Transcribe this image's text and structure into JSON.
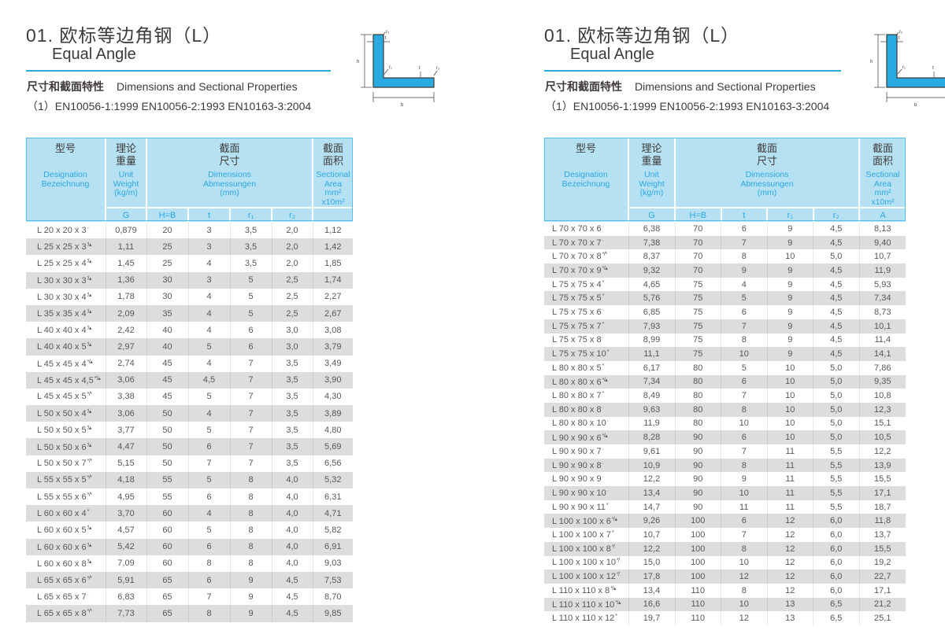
{
  "colors": {
    "accent_blue": "#29abe2",
    "header_bg": "#b5e1f3",
    "header_text_blue": "#2da7e0",
    "stripe_gray": "#dcdddd",
    "body_text": "#595757"
  },
  "header": {
    "title_cn": "01. 欧标等边角钢（L）",
    "title_en": "Equal Angle",
    "subtitle_cn": "尺寸和截面特性",
    "subtitle_en": "Dimensions and Sectional Properties",
    "standards": "（1）EN10056-1:1999  EN10056-2:1993  EN10163-3:2004"
  },
  "diagram": {
    "labels": {
      "r2_top": "r₂",
      "t_top": "t",
      "h": "h",
      "r1": "r₁",
      "t_right": "t",
      "r2_right": "r₂",
      "b": "b"
    }
  },
  "columns": {
    "designation": {
      "cn": "型号",
      "en1": "Designation",
      "en2": "Bezeichnung"
    },
    "weight": {
      "cn1": "理论",
      "cn2": "重量",
      "en1": "Unit",
      "en2": "Weight",
      "en3": "(kg/m)"
    },
    "dims": {
      "cn1": "截面",
      "cn2": "尺寸",
      "en1": "Dimensions",
      "en2": "Abmessungen",
      "en3": "(mm)"
    },
    "area": {
      "cn1": "截面",
      "cn2": "面积",
      "en1": "Sectional",
      "en2": "Area",
      "en3": "mm²",
      "en4": "x10m²"
    }
  },
  "left_table": {
    "sub_headers": [
      "G",
      "H=B",
      "t",
      "r₁",
      "r₂",
      ""
    ],
    "rows": [
      {
        "d": "L 20 x 20 x 3",
        "m": "-",
        "g": "0,879",
        "hb": "20",
        "t": "3",
        "r1": "3,5",
        "r2": "2,0",
        "a": "1,12"
      },
      {
        "d": "L 25 x 25 x 3",
        "m": "′/▴",
        "g": "1,11",
        "hb": "25",
        "t": "3",
        "r1": "3,5",
        "r2": "2,0",
        "a": "1,42"
      },
      {
        "d": "L 25 x 25 x 4",
        "m": "′/▴",
        "g": "1,45",
        "hb": "25",
        "t": "4",
        "r1": "3,5",
        "r2": "2,0",
        "a": "1,85"
      },
      {
        "d": "L 30 x 30 x 3",
        "m": "′/▴",
        "g": "1,36",
        "hb": "30",
        "t": "3",
        "r1": "5",
        "r2": "2,5",
        "a": "1,74"
      },
      {
        "d": "L 30 x 30 x 4",
        "m": "′/▴",
        "g": "1,78",
        "hb": "30",
        "t": "4",
        "r1": "5",
        "r2": "2,5",
        "a": "2,27"
      },
      {
        "d": "L 35 x 35 x 4",
        "m": "′/▴",
        "g": "2,09",
        "hb": "35",
        "t": "4",
        "r1": "5",
        "r2": "2,5",
        "a": "2,67"
      },
      {
        "d": "L 40 x 40 x 4",
        "m": "′/▴",
        "g": "2,42",
        "hb": "40",
        "t": "4",
        "r1": "6",
        "r2": "3,0",
        "a": "3,08"
      },
      {
        "d": "L 40 x 40 x 5",
        "m": "′/▴",
        "g": "2,97",
        "hb": "40",
        "t": "5",
        "r1": "6",
        "r2": "3,0",
        "a": "3,79"
      },
      {
        "d": "L 45 x 45 x 4",
        "m": "*/▴",
        "g": "2,74",
        "hb": "45",
        "t": "4",
        "r1": "7",
        "r2": "3,5",
        "a": "3,49"
      },
      {
        "d": "L 45 x 45 x 4,5",
        "m": "*′/▴",
        "g": "3,06",
        "hb": "45",
        "t": "4,5",
        "r1": "7",
        "r2": "3,5",
        "a": "3,90"
      },
      {
        "d": "L 45 x 45 x 5",
        "m": "*/*",
        "g": "3,38",
        "hb": "45",
        "t": "5",
        "r1": "7",
        "r2": "3,5",
        "a": "4,30"
      },
      {
        "d": "L 50 x 50 x 4",
        "m": "′/▴",
        "g": "3,06",
        "hb": "50",
        "t": "4",
        "r1": "7",
        "r2": "3,5",
        "a": "3,89"
      },
      {
        "d": "L 50 x 50 x 5",
        "m": "′/▴",
        "g": "3,77",
        "hb": "50",
        "t": "5",
        "r1": "7",
        "r2": "3,5",
        "a": "4,80"
      },
      {
        "d": "L 50 x 50 x 6",
        "m": "′/▴",
        "g": "4,47",
        "hb": "50",
        "t": "6",
        "r1": "7",
        "r2": "3,5",
        "a": "5,69"
      },
      {
        "d": "L 50 x 50 x 7",
        "m": "*/*",
        "g": "5,15",
        "hb": "50",
        "t": "7",
        "r1": "7",
        "r2": "3,5",
        "a": "6,56"
      },
      {
        "d": "L 55 x 55 x 5",
        "m": "*/*",
        "g": "4,18",
        "hb": "55",
        "t": "5",
        "r1": "8",
        "r2": "4,0",
        "a": "5,32"
      },
      {
        "d": "L 55 x 55 x 6",
        "m": "*/*",
        "g": "4,95",
        "hb": "55",
        "t": "6",
        "r1": "8",
        "r2": "4,0",
        "a": "6,31"
      },
      {
        "d": "L 60 x 60 x 4",
        "m": "*",
        "g": "3,70",
        "hb": "60",
        "t": "4",
        "r1": "8",
        "r2": "4,0",
        "a": "4,71"
      },
      {
        "d": "L 60 x 60 x 5",
        "m": "′/▴",
        "g": "4,57",
        "hb": "60",
        "t": "5",
        "r1": "8",
        "r2": "4,0",
        "a": "5,82"
      },
      {
        "d": "L 60 x 60 x 6",
        "m": "′/▴",
        "g": "5,42",
        "hb": "60",
        "t": "6",
        "r1": "8",
        "r2": "4,0",
        "a": "6,91"
      },
      {
        "d": "L 60 x 60 x 8",
        "m": "′/▴",
        "g": "7,09",
        "hb": "60",
        "t": "8",
        "r1": "8",
        "r2": "4,0",
        "a": "9,03"
      },
      {
        "d": "L 65 x 65 x 6",
        "m": "*/*",
        "g": "5,91",
        "hb": "65",
        "t": "6",
        "r1": "9",
        "r2": "4,5",
        "a": "7,53"
      },
      {
        "d": "L 65 x 65 x 7",
        "m": "·",
        "g": "6,83",
        "hb": "65",
        "t": "7",
        "r1": "9",
        "r2": "4,5",
        "a": "8,70"
      },
      {
        "d": "L 65 x 65 x 8",
        "m": "*/*",
        "g": "7,73",
        "hb": "65",
        "t": "8",
        "r1": "9",
        "r2": "4,5",
        "a": "9,85"
      }
    ]
  },
  "right_table": {
    "sub_headers": [
      "G",
      "H=B",
      "t",
      "r₁",
      "r₂",
      "A"
    ],
    "rows": [
      {
        "d": "L 70 x 70 x 6",
        "m": "·",
        "g": "6,38",
        "hb": "70",
        "t": "6",
        "r1": "9",
        "r2": "4,5",
        "a": "8,13"
      },
      {
        "d": "L 70 x 70 x 7",
        "m": "·",
        "g": "7,38",
        "hb": "70",
        "t": "7",
        "r1": "9",
        "r2": "4,5",
        "a": "9,40"
      },
      {
        "d": "L 70 x 70 x 8",
        "m": "*/*",
        "g": "8,37",
        "hb": "70",
        "t": "8",
        "r1": "10",
        "r2": "5,0",
        "a": "10,7"
      },
      {
        "d": "L 70 x 70 x 9",
        "m": "*/▴",
        "g": "9,32",
        "hb": "70",
        "t": "9",
        "r1": "9",
        "r2": "4,5",
        "a": "11,9"
      },
      {
        "d": "L 75 x 75 x 4",
        "m": "*",
        "g": "4,65",
        "hb": "75",
        "t": "4",
        "r1": "9",
        "r2": "4,5",
        "a": "5,93"
      },
      {
        "d": "L 75 x 75 x 5",
        "m": "*",
        "g": "5,76",
        "hb": "75",
        "t": "5",
        "r1": "9",
        "r2": "4,5",
        "a": "7,34"
      },
      {
        "d": "L 75 x 75 x 6",
        "m": "·",
        "g": "6,85",
        "hb": "75",
        "t": "6",
        "r1": "9",
        "r2": "4,5",
        "a": "8,73"
      },
      {
        "d": "L 75 x 75 x 7",
        "m": "*",
        "g": "7,93",
        "hb": "75",
        "t": "7",
        "r1": "9",
        "r2": "4,5",
        "a": "10,1"
      },
      {
        "d": "L 75 x 75 x 8",
        "m": "·",
        "g": "8,99",
        "hb": "75",
        "t": "8",
        "r1": "9",
        "r2": "4,5",
        "a": "11,4"
      },
      {
        "d": "L 75 x 75 x 10",
        "m": "*",
        "g": "11,1",
        "hb": "75",
        "t": "10",
        "r1": "9",
        "r2": "4,5",
        "a": "14,1"
      },
      {
        "d": "L 80 x 80 x 5",
        "m": "*",
        "g": "6,17",
        "hb": "80",
        "t": "5",
        "r1": "10",
        "r2": "5,0",
        "a": "7,86"
      },
      {
        "d": "L 80 x 80 x 6",
        "m": "*/▴",
        "g": "7,34",
        "hb": "80",
        "t": "6",
        "r1": "10",
        "r2": "5,0",
        "a": "9,35"
      },
      {
        "d": "L 80 x 80 x 7",
        "m": "*",
        "g": "8,49",
        "hb": "80",
        "t": "7",
        "r1": "10",
        "r2": "5,0",
        "a": "10,8"
      },
      {
        "d": "L 80 x 80 x 8",
        "m": "·",
        "g": "9,63",
        "hb": "80",
        "t": "8",
        "r1": "10",
        "r2": "5,0",
        "a": "12,3"
      },
      {
        "d": "L 80 x 80 x 10",
        "m": "·",
        "g": "11,9",
        "hb": "80",
        "t": "10",
        "r1": "10",
        "r2": "5,0",
        "a": "15,1"
      },
      {
        "d": "L 90 x 90 x 6",
        "m": "*/▴",
        "g": "8,28",
        "hb": "90",
        "t": "6",
        "r1": "10",
        "r2": "5,0",
        "a": "10,5"
      },
      {
        "d": "L 90 x 90 x 7",
        "m": "·",
        "g": "9,61",
        "hb": "90",
        "t": "7",
        "r1": "11",
        "r2": "5,5",
        "a": "12,2"
      },
      {
        "d": "L 90 x 90 x 8",
        "m": "·",
        "g": "10,9",
        "hb": "90",
        "t": "8",
        "r1": "11",
        "r2": "5,5",
        "a": "13,9"
      },
      {
        "d": "L 90 x 90 x 9",
        "m": "·",
        "g": "12,2",
        "hb": "90",
        "t": "9",
        "r1": "11",
        "r2": "5,5",
        "a": "15,5"
      },
      {
        "d": "L 90 x 90 x 10",
        "m": "·",
        "g": "13,4",
        "hb": "90",
        "t": "10",
        "r1": "11",
        "r2": "5,5",
        "a": "17,1"
      },
      {
        "d": "L 90 x 90 x 11",
        "m": "*",
        "g": "14,7",
        "hb": "90",
        "t": "11",
        "r1": "11",
        "r2": "5,5",
        "a": "18,7"
      },
      {
        "d": "L 100 x 100 x 6",
        "m": "*/▴",
        "g": "9,26",
        "hb": "100",
        "t": "6",
        "r1": "12",
        "r2": "6,0",
        "a": "11,8"
      },
      {
        "d": "L 100 x 100 x 7",
        "m": "*",
        "g": "10,7",
        "hb": "100",
        "t": "7",
        "r1": "12",
        "r2": "6,0",
        "a": "13,7"
      },
      {
        "d": "L 100 x 100 x 8",
        "m": "*/",
        "g": "12,2",
        "hb": "100",
        "t": "8",
        "r1": "12",
        "r2": "6,0",
        "a": "15,5"
      },
      {
        "d": "L 100 x 100 x 10",
        "m": "*/",
        "g": "15,0",
        "hb": "100",
        "t": "10",
        "r1": "12",
        "r2": "6,0",
        "a": "19,2"
      },
      {
        "d": "L 100 x 100 x 12",
        "m": "*/",
        "g": "17,8",
        "hb": "100",
        "t": "12",
        "r1": "12",
        "r2": "6,0",
        "a": "22,7"
      },
      {
        "d": "L 110 x 110 x 8",
        "m": "*/▴",
        "g": "13,4",
        "hb": "110",
        "t": "8",
        "r1": "12",
        "r2": "6,0",
        "a": "17,1"
      },
      {
        "d": "L 110 x 110 x 10",
        "m": "*/▴",
        "g": "16,6",
        "hb": "110",
        "t": "10",
        "r1": "13",
        "r2": "6,5",
        "a": "21,2"
      },
      {
        "d": "L 110 x 110 x 12",
        "m": "*",
        "g": "19,7",
        "hb": "110",
        "t": "12",
        "r1": "13",
        "r2": "6,5",
        "a": "25,1"
      }
    ]
  }
}
